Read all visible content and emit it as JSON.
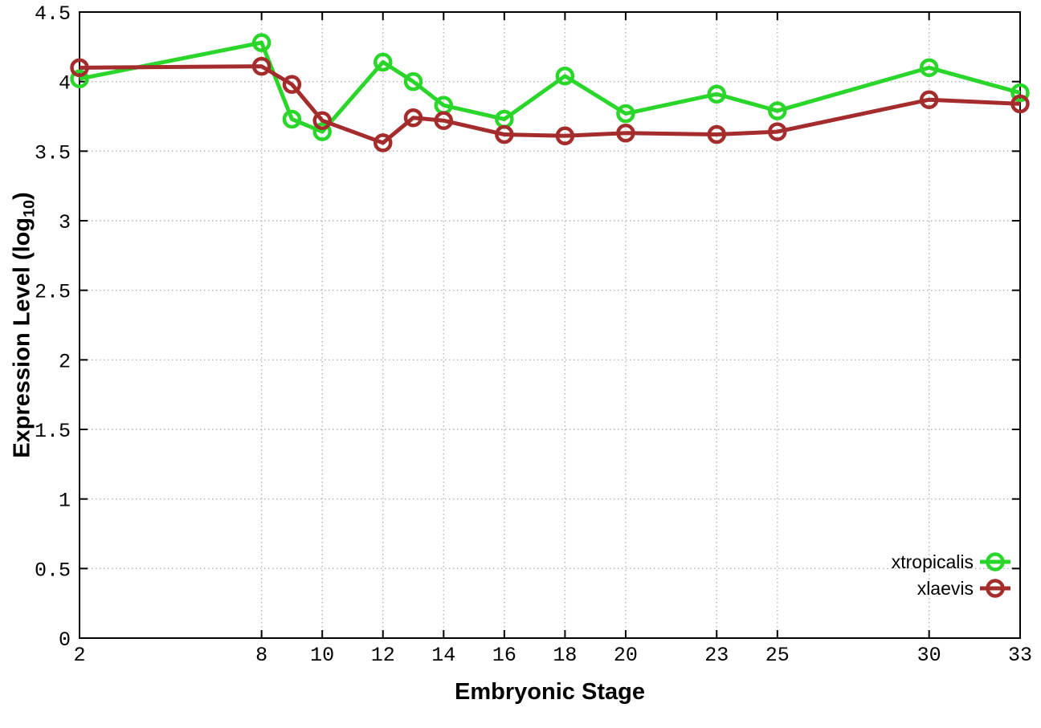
{
  "figure": {
    "background_color": "#ffffff",
    "border_color": "#000000",
    "grid_color": "#b4b4b4",
    "text_color": "#000000",
    "x_axis": {
      "title": "Embryonic Stage",
      "tick_labels": [
        "2",
        "8",
        "10",
        "12",
        "14",
        "16",
        "18",
        "20",
        "23",
        "25",
        "30",
        "33"
      ],
      "tick_values": [
        2,
        8,
        10,
        12,
        14,
        16,
        18,
        20,
        23,
        25,
        30,
        33
      ]
    },
    "y_axis": {
      "title_full": "Expression Level (log10)",
      "title_main": "Expression Level (log",
      "title_sub": "10",
      "title_close": ")",
      "tick_labels": [
        "0",
        "0.5",
        "1",
        "1.5",
        "2",
        "2.5",
        "3",
        "3.5",
        "4",
        "4.5"
      ],
      "tick_values": [
        0,
        0.5,
        1,
        1.5,
        2,
        2.5,
        3,
        3.5,
        4,
        4.5
      ]
    },
    "legend": {
      "position": "inside-bottom-right",
      "entries": [
        {
          "label": "xtropicalis",
          "color": "#2bd62b",
          "marker": "open-circle"
        },
        {
          "label": "xlaevis",
          "color": "#a52c2c",
          "marker": "open-circle"
        }
      ]
    }
  },
  "chart_data": {
    "type": "line",
    "title": "",
    "xlabel": "Embryonic Stage",
    "ylabel": "Expression Level (log10)",
    "xlim": [
      2,
      33
    ],
    "ylim": [
      0,
      4.5
    ],
    "grid": true,
    "marker": "open-circle",
    "legend_position": "lower right inside",
    "x": [
      2,
      8,
      9,
      10,
      12,
      13,
      14,
      16,
      18,
      20,
      23,
      25,
      30,
      33
    ],
    "series": [
      {
        "name": "xtropicalis",
        "color": "#2bd62b",
        "values": [
          4.02,
          4.28,
          3.73,
          3.64,
          4.14,
          4.0,
          3.83,
          3.73,
          4.04,
          3.77,
          3.91,
          3.79,
          4.1,
          3.92
        ]
      },
      {
        "name": "xlaevis",
        "color": "#a52c2c",
        "values": [
          4.1,
          4.11,
          3.98,
          3.72,
          3.56,
          3.74,
          3.72,
          3.62,
          3.61,
          3.63,
          3.62,
          3.64,
          3.87,
          3.84
        ]
      }
    ]
  }
}
